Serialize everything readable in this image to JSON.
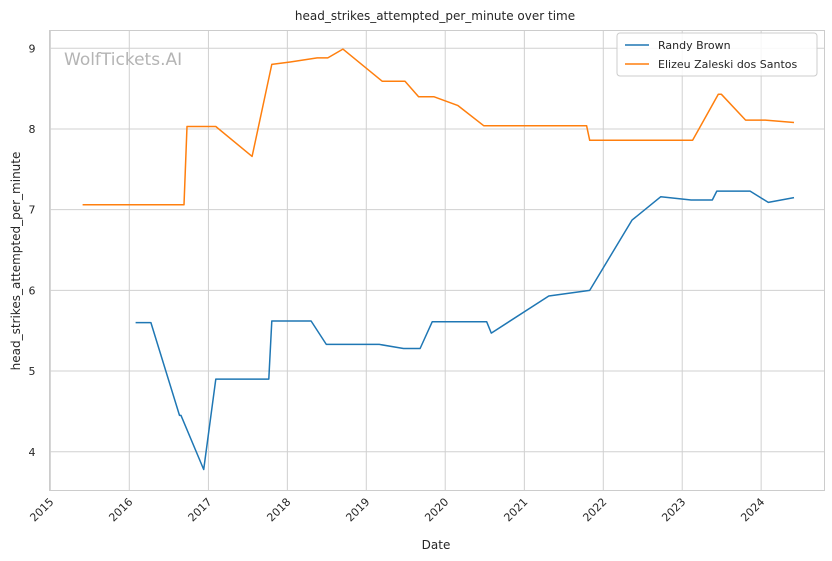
{
  "chart_data": {
    "type": "line",
    "title": "head_strikes_attempted_per_minute over time",
    "xlabel": "Date",
    "ylabel": "head_strikes_attempted_per_minute",
    "watermark": "WolfTickets.AI",
    "x_range": [
      "2014-12-28",
      "2024-10-20"
    ],
    "ylim": [
      3.52,
      9.22
    ],
    "y_ticks": [
      4,
      5,
      6,
      7,
      8,
      9
    ],
    "x_ticks": [
      "2015",
      "2016",
      "2017",
      "2018",
      "2019",
      "2020",
      "2021",
      "2022",
      "2023",
      "2024"
    ],
    "grid": true,
    "legend_position": "top-right",
    "series": [
      {
        "name": "Randy Brown",
        "color": "#1f77b4",
        "points": [
          [
            "2016-01-30",
            5.6
          ],
          [
            "2016-04-10",
            5.6
          ],
          [
            "2016-08-20",
            4.45
          ],
          [
            "2016-08-27",
            4.45
          ],
          [
            "2016-12-10",
            3.78
          ],
          [
            "2017-02-04",
            4.9
          ],
          [
            "2017-10-07",
            4.9
          ],
          [
            "2017-10-21",
            5.62
          ],
          [
            "2018-04-21",
            5.62
          ],
          [
            "2018-06-30",
            5.33
          ],
          [
            "2019-03-02",
            5.33
          ],
          [
            "2019-06-22",
            5.28
          ],
          [
            "2019-09-07",
            5.28
          ],
          [
            "2019-11-02",
            5.61
          ],
          [
            "2020-07-11",
            5.61
          ],
          [
            "2020-08-01",
            5.47
          ],
          [
            "2021-04-24",
            5.93
          ],
          [
            "2021-10-30",
            6.0
          ],
          [
            "2022-05-14",
            6.87
          ],
          [
            "2022-09-24",
            7.16
          ],
          [
            "2023-02-11",
            7.12
          ],
          [
            "2023-05-20",
            7.12
          ],
          [
            "2023-06-10",
            7.23
          ],
          [
            "2023-11-11",
            7.23
          ],
          [
            "2024-02-03",
            7.09
          ],
          [
            "2024-06-01",
            7.15
          ]
        ]
      },
      {
        "name": "Elizeu Zaleski dos Santos",
        "color": "#ff7f0e",
        "points": [
          [
            "2015-05-30",
            7.06
          ],
          [
            "2016-09-10",
            7.06
          ],
          [
            "2016-09-24",
            8.03
          ],
          [
            "2017-02-04",
            8.03
          ],
          [
            "2017-07-22",
            7.66
          ],
          [
            "2017-10-21",
            8.8
          ],
          [
            "2018-01-14",
            8.83
          ],
          [
            "2018-05-19",
            8.88
          ],
          [
            "2018-07-07",
            8.88
          ],
          [
            "2018-09-15",
            8.99
          ],
          [
            "2019-03-16",
            8.59
          ],
          [
            "2019-06-29",
            8.59
          ],
          [
            "2019-08-31",
            8.4
          ],
          [
            "2019-11-09",
            8.4
          ],
          [
            "2020-02-29",
            8.29
          ],
          [
            "2020-06-27",
            8.04
          ],
          [
            "2021-10-16",
            8.04
          ],
          [
            "2021-10-30",
            7.86
          ],
          [
            "2023-02-18",
            7.86
          ],
          [
            "2023-06-17",
            8.43
          ],
          [
            "2023-07-01",
            8.43
          ],
          [
            "2023-10-21",
            8.11
          ],
          [
            "2024-01-20",
            8.11
          ],
          [
            "2024-06-01",
            8.08
          ]
        ]
      }
    ]
  }
}
